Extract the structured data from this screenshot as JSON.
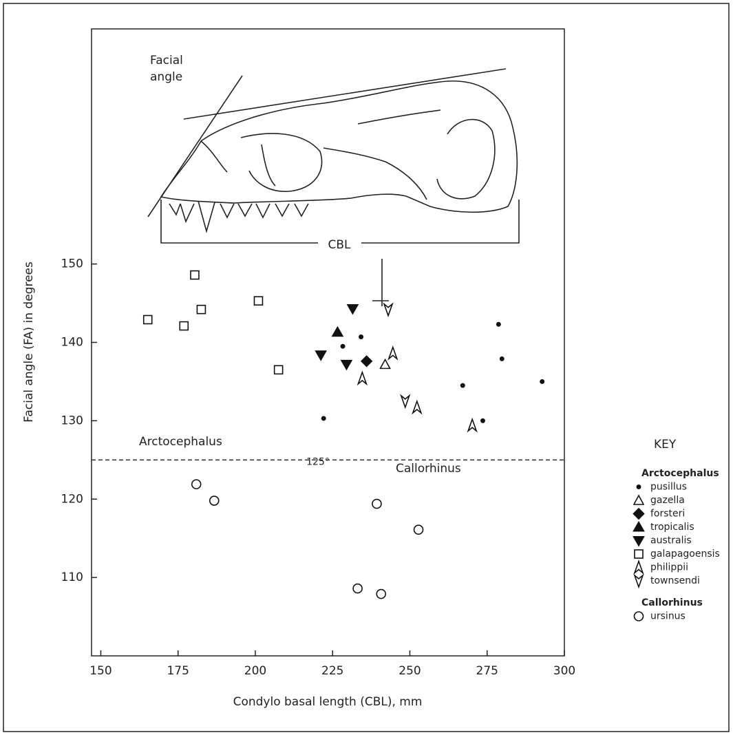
{
  "chart_data": {
    "type": "scatter",
    "x_label": "Condylo basal length (CBL), mm",
    "y_label": "Facial angle (FA) in degrees",
    "xlim": [
      147,
      300
    ],
    "ylim": [
      100,
      180
    ],
    "xticks": [
      150,
      175,
      200,
      225,
      250,
      275,
      300
    ],
    "yticks": [
      110,
      120,
      130,
      140,
      150
    ],
    "threshold": {
      "value": 125,
      "label": "125°"
    },
    "region_labels": [
      "Arctocephalus",
      "Callorhinus"
    ],
    "drawing_labels": {
      "facial_angle": [
        "Facial",
        "angle"
      ],
      "cbl": "CBL"
    },
    "legend_title": "KEY",
    "series": [
      {
        "name": "pusillus",
        "genus": "Arctocephalus",
        "marker": "dot",
        "color": "#111111",
        "x": [
          222.1,
          228.3,
          234.2,
          267.1,
          273.6,
          278.7,
          279.8,
          292.8
        ],
        "values": [
          130.3,
          139.5,
          140.7,
          134.5,
          130.0,
          142.3,
          137.9,
          135.0
        ]
      },
      {
        "name": "gazella",
        "genus": "Arctocephalus",
        "marker": "triangle-open",
        "color": "#111111",
        "x": [
          242.0
        ],
        "values": [
          137.2
        ]
      },
      {
        "name": "forsteri",
        "genus": "Arctocephalus",
        "marker": "diamond",
        "color": "#111111",
        "x": [
          236.0
        ],
        "values": [
          137.6
        ]
      },
      {
        "name": "tropicalis",
        "genus": "Arctocephalus",
        "marker": "triangle-filled",
        "color": "#111111",
        "x": [
          226.6
        ],
        "values": [
          141.3
        ]
      },
      {
        "name": "australis",
        "genus": "Arctocephalus",
        "marker": "triangle-down-filled",
        "color": "#111111",
        "x": [
          231.5,
          221.2,
          229.5
        ],
        "values": [
          144.3,
          138.4,
          137.2
        ]
      },
      {
        "name": "galapagoensis",
        "genus": "Arctocephalus",
        "marker": "square-open",
        "color": "#111111",
        "x": [
          165.2,
          176.9,
          180.4,
          182.5,
          201.0,
          207.5
        ],
        "values": [
          142.9,
          142.1,
          148.6,
          144.2,
          145.3,
          136.5
        ]
      },
      {
        "name": "philippii",
        "genus": "Arctocephalus",
        "marker": "arrow-open",
        "color": "#111111",
        "x": [
          234.6,
          244.5,
          252.3,
          270.2
        ],
        "values": [
          135.4,
          138.6,
          131.7,
          129.4
        ]
      },
      {
        "name": "townsendi",
        "genus": "Arctocephalus",
        "marker": "arrow-down-open",
        "color": "#111111",
        "x": [
          243.0,
          248.5
        ],
        "values": [
          144.2,
          132.5
        ]
      },
      {
        "name": "ursinus",
        "genus": "Callorhinus",
        "marker": "circle-open",
        "color": "#111111",
        "x": [
          180.9,
          186.7,
          239.3,
          252.8,
          233.1,
          240.7
        ],
        "values": [
          121.9,
          119.8,
          119.4,
          116.1,
          108.6,
          107.9
        ]
      }
    ]
  }
}
